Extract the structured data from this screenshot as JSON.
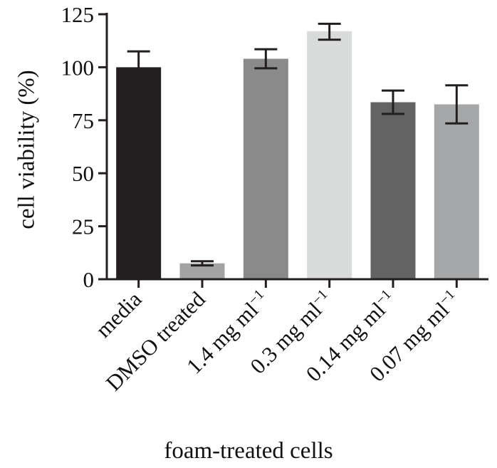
{
  "chart_data": {
    "type": "bar",
    "xlabel": "foam-treated cells",
    "ylabel": "cell viability (%)",
    "ylim": [
      0,
      125
    ],
    "yticks": [
      0,
      25,
      50,
      75,
      100,
      125
    ],
    "grid": false,
    "categories": [
      {
        "base": "media",
        "sup": ""
      },
      {
        "base": "DMSO treated",
        "sup": ""
      },
      {
        "base": "1.4 mg ml",
        "sup": "−1"
      },
      {
        "base": "0.3 mg ml",
        "sup": "−1"
      },
      {
        "base": "0.14 mg ml",
        "sup": "−1"
      },
      {
        "base": "0.07 mg ml",
        "sup": "−1"
      }
    ],
    "values": [
      100,
      7.5,
      104,
      117,
      83.5,
      82.5
    ],
    "error": [
      [
        93,
        107.5
      ],
      [
        6.5,
        8.5
      ],
      [
        99.5,
        108.5
      ],
      [
        113,
        120.5
      ],
      [
        78,
        89
      ],
      [
        73.5,
        91.5
      ]
    ],
    "colors": [
      "#231f20",
      "#a3a3a3",
      "#8a8a8a",
      "#d9dada",
      "#636363",
      "#a6a7a9"
    ]
  }
}
